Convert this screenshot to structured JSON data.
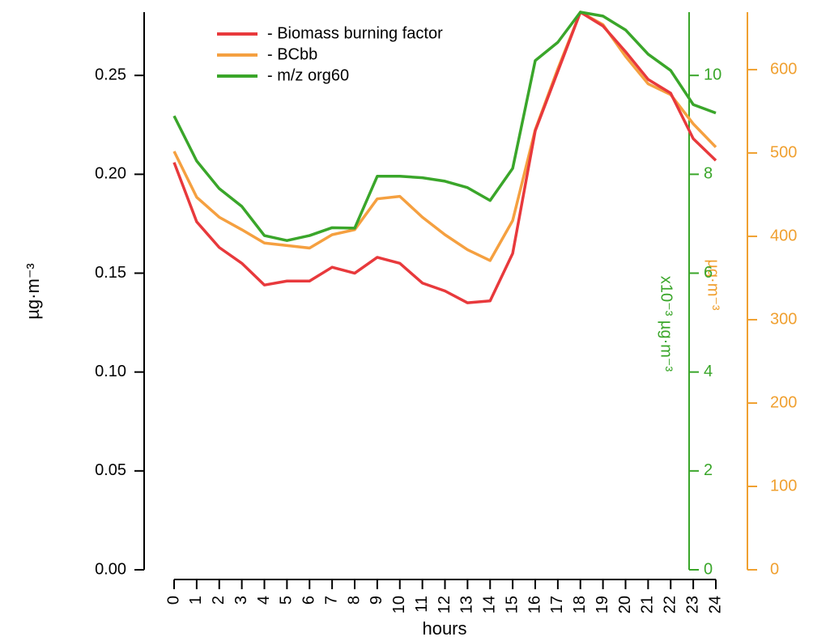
{
  "chart_data": {
    "type": "line",
    "xlabel": "hours",
    "ylabel": "µg·m⁻³",
    "y2label": "x10⁻³ µg·m⁻³",
    "y3label": "µg·m⁻³",
    "x": [
      0,
      1,
      2,
      3,
      4,
      5,
      6,
      7,
      8,
      9,
      10,
      11,
      12,
      13,
      14,
      15,
      16,
      17,
      18,
      19,
      20,
      21,
      22,
      23,
      24
    ],
    "xlim": [
      0,
      24
    ],
    "xticks": [
      0,
      1,
      2,
      3,
      4,
      5,
      6,
      7,
      8,
      9,
      10,
      11,
      12,
      13,
      14,
      15,
      16,
      17,
      18,
      19,
      20,
      21,
      22,
      23,
      24
    ],
    "ylim": [
      0,
      0.282
    ],
    "yticks": [
      {
        "value": 0,
        "label": "0.00"
      },
      0.05,
      {
        "value": 0.1,
        "label": "0.10"
      },
      0.15,
      {
        "value": 0.2,
        "label": "0.20"
      },
      0.25
    ],
    "y2lim": [
      0,
      11.28
    ],
    "y2ticks": [
      0,
      2,
      4,
      6,
      8,
      10
    ],
    "y3lim": [
      0,
      669
    ],
    "y3ticks": [
      0,
      100,
      200,
      300,
      400,
      500,
      600
    ],
    "y2color": "#3aa62a",
    "y3color": "#f0a030",
    "legend": "top-left",
    "series": [
      {
        "name": "- Biomass burning factor",
        "color": "#e8393c",
        "axis": "y",
        "values": [
          0.206,
          0.176,
          0.163,
          0.155,
          0.144,
          0.146,
          0.146,
          0.153,
          0.15,
          0.158,
          0.155,
          0.145,
          0.141,
          0.135,
          0.136,
          0.16,
          0.222,
          0.252,
          0.282,
          0.275,
          0.262,
          0.248,
          0.241,
          0.218,
          0.207
        ]
      },
      {
        "name": "- BCbb",
        "color": "#f5a040",
        "axis": "y3",
        "values": [
          502,
          447,
          423,
          408,
          392,
          389,
          386,
          402,
          408,
          445,
          448,
          423,
          402,
          384,
          371,
          419,
          528,
          601,
          669,
          654,
          616,
          583,
          570,
          535,
          507
        ]
      },
      {
        "name": "- m/z org60",
        "color": "#3aa62a",
        "axis": "y2",
        "values": [
          9.18,
          8.27,
          7.71,
          7.35,
          6.76,
          6.66,
          6.76,
          6.92,
          6.91,
          7.96,
          7.96,
          7.93,
          7.86,
          7.73,
          7.47,
          8.12,
          10.3,
          10.67,
          11.28,
          11.2,
          10.92,
          10.43,
          10.1,
          9.41,
          9.24
        ]
      }
    ]
  }
}
